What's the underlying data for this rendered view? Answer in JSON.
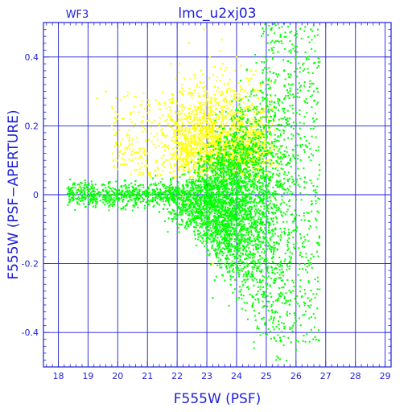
{
  "chart_data": {
    "type": "scatter",
    "title": "lmc_u2xj03",
    "panel_label": "WF3",
    "xlabel": "F555W (PSF)",
    "ylabel": "F555W (PSF−APERTURE)",
    "xlim": [
      17.5,
      29.2
    ],
    "ylim": [
      -0.5,
      0.5
    ],
    "x_ticks": [
      18,
      19,
      20,
      21,
      22,
      23,
      24,
      25,
      26,
      27,
      28,
      29
    ],
    "x_tick_labels": [
      "18",
      "19",
      "20",
      "21",
      "22",
      "23",
      "24",
      "25",
      "26",
      "27",
      "28",
      "29"
    ],
    "y_ticks": [
      0.4,
      0.2,
      0,
      -0.2,
      -0.4
    ],
    "y_tick_labels": [
      "0.4",
      "0.2",
      "0",
      "-0.2",
      "-0.4"
    ],
    "grid": true,
    "series": [
      {
        "color": "#ffff00",
        "description_points": [
          [
            18.7,
            0.02
          ],
          [
            19.3,
            0.28
          ],
          [
            19.6,
            0.3
          ],
          [
            20.2,
            0.22
          ],
          [
            20.5,
            0.16
          ],
          [
            20.8,
            0.21
          ],
          [
            21.0,
            0.12
          ],
          [
            21.3,
            0.1
          ],
          [
            21.5,
            0.18
          ],
          [
            21.6,
            0.26
          ],
          [
            21.8,
            0.38
          ],
          [
            21.9,
            0.05
          ],
          [
            22.0,
            0.15
          ],
          [
            22.1,
            0.3
          ],
          [
            22.2,
            0.08
          ],
          [
            22.3,
            0.22
          ],
          [
            22.4,
            0.44
          ],
          [
            22.5,
            0.12
          ],
          [
            22.6,
            0.34
          ],
          [
            22.7,
            0.02
          ],
          [
            22.8,
            0.2
          ],
          [
            22.9,
            0.48
          ],
          [
            23.0,
            0.1
          ],
          [
            23.0,
            0.3
          ],
          [
            23.1,
            0.4
          ],
          [
            23.2,
            0.18
          ],
          [
            23.3,
            0.06
          ],
          [
            23.4,
            0.26
          ],
          [
            23.5,
            0.45
          ],
          [
            23.6,
            0.14
          ],
          [
            23.7,
            0.32
          ],
          [
            23.8,
            0.08
          ],
          [
            23.9,
            0.22
          ],
          [
            24.0,
            0.4
          ],
          [
            24.1,
            0.12
          ],
          [
            24.2,
            0.28
          ],
          [
            24.3,
            0.05
          ],
          [
            24.4,
            0.18
          ],
          [
            24.5,
            0.36
          ],
          [
            24.6,
            0.1
          ],
          [
            24.8,
            0.24
          ],
          [
            25.0,
            0.15
          ],
          [
            22.4,
            -0.02
          ],
          [
            22.9,
            -0.08
          ],
          [
            23.2,
            -0.2
          ],
          [
            23.5,
            -0.05
          ],
          [
            21.7,
            0.02
          ],
          [
            22.2,
            0.0
          ]
        ]
      },
      {
        "color": "#00ff00",
        "description_points": [
          [
            18.4,
            0.0
          ],
          [
            18.8,
            -0.01
          ],
          [
            19.2,
            0.01
          ],
          [
            19.5,
            0.03
          ],
          [
            20.0,
            0.0
          ],
          [
            20.3,
            -0.03
          ],
          [
            20.6,
            0.04
          ],
          [
            21.0,
            0.0
          ],
          [
            21.4,
            -0.05
          ],
          [
            21.8,
            0.02
          ],
          [
            22.2,
            -0.04
          ],
          [
            22.6,
            0.0
          ],
          [
            23.0,
            -0.06
          ],
          [
            23.4,
            0.05
          ],
          [
            23.8,
            -0.02
          ],
          [
            24.2,
            0.0
          ],
          [
            24.6,
            -0.08
          ],
          [
            25.0,
            0.06
          ],
          [
            25.4,
            -0.12
          ],
          [
            25.8,
            0.1
          ],
          [
            26.2,
            -0.18
          ],
          [
            26.6,
            0.3
          ],
          [
            24.5,
            0.3
          ],
          [
            25.2,
            0.42
          ],
          [
            25.6,
            0.25
          ],
          [
            26.0,
            0.4
          ],
          [
            26.4,
            -0.3
          ],
          [
            25.9,
            -0.38
          ],
          [
            25.3,
            -0.25
          ],
          [
            24.8,
            -0.2
          ],
          [
            24.0,
            -0.3
          ],
          [
            23.6,
            -0.2
          ],
          [
            26.5,
            0.48
          ],
          [
            26.0,
            -0.45
          ],
          [
            24.6,
            0.15
          ],
          [
            25.5,
            -0.05
          ],
          [
            26.3,
            0.05
          ],
          [
            22.8,
            -0.12
          ],
          [
            23.2,
            -0.3
          ],
          [
            25.1,
            0.2
          ]
        ]
      }
    ]
  }
}
